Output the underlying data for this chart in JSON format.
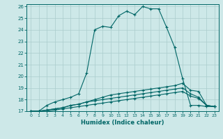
{
  "xlabel": "Humidex (Indice chaleur)",
  "ylabel": "",
  "bg_color": "#cde8e8",
  "grid_color": "#aacccc",
  "line_color": "#006666",
  "xlim": [
    -0.5,
    23.5
  ],
  "ylim": [
    17,
    26.2
  ],
  "xticks": [
    0,
    1,
    2,
    3,
    4,
    5,
    6,
    7,
    8,
    9,
    10,
    11,
    12,
    13,
    14,
    15,
    16,
    17,
    18,
    19,
    20,
    21,
    22,
    23
  ],
  "yticks": [
    17,
    18,
    19,
    20,
    21,
    22,
    23,
    24,
    25,
    26
  ],
  "series": [
    [
      17.0,
      17.0,
      17.5,
      17.8,
      18.0,
      18.2,
      18.5,
      20.3,
      24.0,
      24.3,
      24.2,
      25.2,
      25.6,
      25.3,
      26.0,
      25.8,
      25.8,
      24.2,
      22.5,
      19.8,
      17.5,
      17.5,
      17.4,
      17.4
    ],
    [
      17.0,
      17.0,
      17.1,
      17.2,
      17.3,
      17.5,
      17.6,
      17.8,
      18.0,
      18.2,
      18.4,
      18.5,
      18.6,
      18.7,
      18.8,
      18.9,
      19.0,
      19.1,
      19.2,
      19.4,
      18.8,
      18.7,
      17.5,
      17.4
    ],
    [
      17.0,
      17.0,
      17.1,
      17.2,
      17.3,
      17.5,
      17.6,
      17.8,
      17.9,
      18.0,
      18.1,
      18.2,
      18.3,
      18.4,
      18.5,
      18.6,
      18.7,
      18.8,
      18.9,
      19.0,
      18.5,
      18.2,
      17.5,
      17.4
    ],
    [
      17.0,
      17.0,
      17.0,
      17.1,
      17.2,
      17.3,
      17.4,
      17.5,
      17.6,
      17.7,
      17.8,
      17.9,
      18.0,
      18.1,
      18.2,
      18.3,
      18.4,
      18.5,
      18.6,
      18.7,
      18.3,
      18.1,
      17.5,
      17.4
    ]
  ]
}
